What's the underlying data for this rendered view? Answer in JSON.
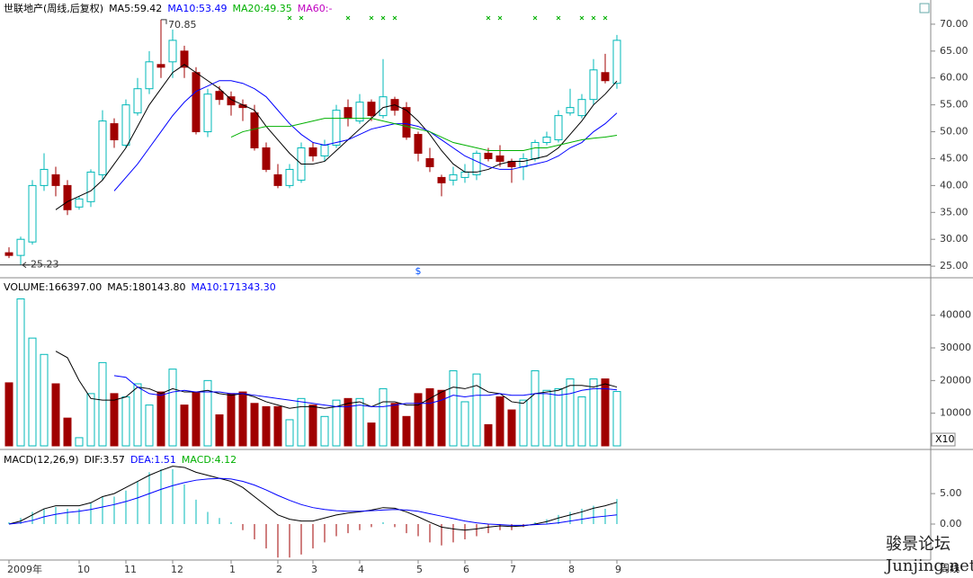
{
  "chart_data": [
    {
      "type": "candlestick",
      "title": "世联地产(周线,后复权)",
      "title_color": "#000000",
      "categories": [
        "2009年",
        null,
        null,
        null,
        null,
        null,
        "10",
        null,
        null,
        null,
        "11",
        null,
        null,
        null,
        "12",
        null,
        null,
        null,
        null,
        "1",
        null,
        null,
        null,
        "2",
        null,
        null,
        "3",
        null,
        null,
        null,
        "4",
        null,
        null,
        null,
        null,
        "5",
        null,
        null,
        null,
        "6",
        null,
        null,
        null,
        "7",
        null,
        null,
        null,
        null,
        "8",
        null,
        null,
        null,
        "9"
      ],
      "open": [
        27.5,
        27,
        29.5,
        40,
        42,
        40,
        36,
        37,
        42,
        51.5,
        47.5,
        53.5,
        58,
        62.5,
        63,
        65,
        61,
        50,
        57.5,
        56.5,
        55,
        53.5,
        47,
        42,
        40,
        41,
        47,
        45.5,
        47.5,
        54.5,
        52,
        55.5,
        53,
        56,
        54.5,
        49.5,
        45,
        41.5,
        41,
        41.5,
        42,
        46,
        45.5,
        44.5,
        43.5,
        45,
        48,
        48.5,
        53.5,
        53,
        56,
        61,
        59
      ],
      "high": [
        28.5,
        30.5,
        41,
        46,
        43.5,
        41,
        38,
        43,
        54,
        52.5,
        56,
        60,
        65,
        70.85,
        69,
        66,
        62,
        58,
        58.5,
        57.5,
        56,
        55,
        48,
        44,
        44,
        48,
        48,
        48.5,
        55,
        56,
        57,
        56,
        63.5,
        56.5,
        55.5,
        50,
        47,
        42,
        43.5,
        44,
        46.5,
        47,
        47.5,
        45,
        46,
        48.5,
        50,
        54,
        58,
        57,
        63.5,
        64.5,
        68
      ],
      "low": [
        26.5,
        25.23,
        29,
        39,
        38,
        34.5,
        35.5,
        36,
        41,
        47,
        47,
        53,
        57,
        60,
        60,
        60,
        49.5,
        49,
        55,
        53,
        52,
        46.5,
        42.5,
        39.5,
        39.5,
        40.5,
        44.5,
        44.5,
        47,
        51,
        51.5,
        52,
        52.5,
        53,
        48.5,
        44.5,
        42.5,
        38,
        40,
        40.5,
        41,
        44.5,
        43.5,
        40.5,
        41,
        44.5,
        47.5,
        48,
        53,
        52.5,
        55,
        59,
        58
      ],
      "close": [
        27,
        30,
        40,
        43,
        40,
        35.5,
        37.5,
        42.5,
        52,
        48.5,
        55,
        58,
        63,
        62,
        67,
        62,
        50,
        57,
        56,
        55,
        54.5,
        47,
        43,
        40,
        43,
        47,
        45.5,
        47.5,
        54,
        52.5,
        55.5,
        53,
        56.5,
        54,
        49,
        46,
        43.5,
        40.5,
        42,
        42.5,
        46,
        45,
        44.5,
        43.5,
        45,
        48,
        49,
        53,
        54.5,
        56,
        61.5,
        59.5,
        67
      ],
      "up_color": "#00b8b8",
      "down_color": "#a00000",
      "ylim": [
        24.35,
        74.5
      ],
      "yticks": [
        {
          "value": 25,
          "label": "25.00"
        },
        {
          "value": 30,
          "label": "30.00"
        },
        {
          "value": 35,
          "label": "35.00"
        },
        {
          "value": 40,
          "label": "40.00"
        },
        {
          "value": 45,
          "label": "45.00"
        },
        {
          "value": 50,
          "label": "50.00"
        },
        {
          "value": 55,
          "label": "55.00"
        },
        {
          "value": 60,
          "label": "60.00"
        },
        {
          "value": 65,
          "label": "65.00"
        },
        {
          "value": 70,
          "label": "70.00"
        }
      ],
      "lines": [
        {
          "name": "MA5:59.42",
          "color": "#000000",
          "values": [
            null,
            null,
            null,
            null,
            35.5,
            37,
            38,
            39,
            41,
            44,
            47,
            51,
            55,
            58,
            61,
            62.5,
            61,
            59.5,
            58,
            56,
            55,
            54,
            51,
            48.5,
            46,
            44,
            44,
            44.5,
            46.5,
            48.5,
            50.5,
            52.5,
            54.5,
            55,
            54,
            52,
            49.5,
            46.5,
            44,
            42.5,
            42.5,
            43,
            44,
            44.5,
            44.5,
            45,
            45.5,
            47,
            49.5,
            52,
            55,
            57,
            59.42
          ]
        },
        {
          "name": "MA10:53.49",
          "color": "#0000ff",
          "values": [
            null,
            null,
            null,
            null,
            null,
            null,
            null,
            null,
            null,
            39,
            41.5,
            44,
            47,
            50,
            53,
            55.5,
            57.5,
            58.5,
            59.5,
            59.5,
            59,
            58,
            56.5,
            54,
            51.5,
            49.5,
            48,
            47.5,
            48,
            48.5,
            49.5,
            50.5,
            51,
            51.5,
            51.5,
            51,
            50,
            48.5,
            47,
            45.5,
            44.5,
            43.5,
            43,
            43,
            43.5,
            44,
            44.5,
            45.5,
            47,
            48,
            50,
            51.5,
            53.49
          ]
        },
        {
          "name": "MA20:49.35",
          "color": "#00b000",
          "values": [
            null,
            null,
            null,
            null,
            null,
            null,
            null,
            null,
            null,
            null,
            null,
            null,
            null,
            null,
            null,
            null,
            null,
            null,
            null,
            49,
            50,
            50.5,
            51,
            51,
            51,
            51.5,
            52,
            52.5,
            52.5,
            52.5,
            52.5,
            52.5,
            52,
            51.5,
            51,
            50.5,
            50,
            49,
            48,
            47.5,
            47,
            46.5,
            46.5,
            46.5,
            46.5,
            47,
            47,
            47.5,
            48,
            48.5,
            48.8,
            49,
            49.35
          ]
        },
        {
          "name": "MA60:-",
          "color": "#c000c0"
        }
      ],
      "signals": [
        24,
        25,
        29,
        31,
        32,
        33,
        41,
        42,
        45,
        47,
        49,
        50,
        51
      ],
      "signal_color": "#00b000",
      "marker": {
        "label": "$",
        "index": 35,
        "color": "#0050ff"
      }
    },
    {
      "type": "volume",
      "title": "VOLUME:166397.00",
      "title_color": "#000000",
      "unit_label": "X10",
      "values": [
        19300,
        45000,
        33000,
        28000,
        19000,
        8500,
        2500,
        16000,
        25500,
        16000,
        15000,
        19000,
        12500,
        16500,
        23500,
        12500,
        16500,
        20000,
        9500,
        16000,
        16500,
        13000,
        12000,
        12000,
        8000,
        14500,
        12500,
        9000,
        14000,
        14500,
        14500,
        7000,
        17500,
        13000,
        9000,
        16000,
        17500,
        17000,
        23000,
        13500,
        22000,
        6500,
        15000,
        11000,
        14000,
        23000,
        17000,
        17500,
        20500,
        15000,
        20500,
        20500,
        16639.7
      ],
      "ylim": [
        0,
        51200
      ],
      "yticks": [
        10000,
        20000,
        30000,
        40000
      ],
      "lines": [
        {
          "name": "MA5:180143.80",
          "color": "#000000",
          "values": [
            null,
            null,
            null,
            null,
            29000,
            27000,
            20000,
            14500,
            14000,
            14000,
            15000,
            18000,
            17500,
            16000,
            17500,
            16500,
            16500,
            17000,
            16000,
            15500,
            16000,
            15000,
            13500,
            12500,
            11500,
            12000,
            12000,
            11500,
            12000,
            13000,
            13500,
            12000,
            13500,
            13500,
            12500,
            12500,
            14500,
            16500,
            18000,
            17500,
            18500,
            16500,
            16000,
            13500,
            13000,
            16000,
            16500,
            17000,
            18500,
            18500,
            18000,
            19000,
            18014.38
          ]
        },
        {
          "name": "MA10:171343.30",
          "color": "#0000ff",
          "values": [
            null,
            null,
            null,
            null,
            null,
            null,
            null,
            null,
            null,
            21500,
            21000,
            18000,
            16000,
            15500,
            16500,
            17000,
            16500,
            16500,
            16500,
            16000,
            16000,
            15500,
            15000,
            14500,
            14000,
            13500,
            13000,
            12500,
            12000,
            12000,
            12500,
            12000,
            12000,
            12500,
            13000,
            13000,
            13000,
            14000,
            15500,
            15000,
            15500,
            15500,
            16000,
            15500,
            15500,
            16000,
            16000,
            15500,
            16000,
            17000,
            17500,
            17500,
            17134.33
          ]
        }
      ]
    },
    {
      "type": "macd",
      "title": "MACD(12,26,9)",
      "title_color": "#000000",
      "values": [
        0.3,
        1,
        2,
        2.5,
        2.8,
        2.5,
        2.5,
        3.5,
        4.5,
        4.5,
        5.5,
        7,
        8.5,
        9,
        9,
        6.5,
        4,
        2,
        1,
        0.3,
        -1,
        -2.5,
        -4,
        -5.5,
        -5.5,
        -5,
        -4,
        -3,
        -2,
        -1.5,
        -1,
        -0.5,
        0.3,
        -0.5,
        -1.5,
        -2,
        -3,
        -3.5,
        -3,
        -2.5,
        -2,
        -1.5,
        -1,
        -1,
        -0.5,
        0.3,
        0.8,
        1.5,
        2,
        2.5,
        3,
        2.5,
        4.12
      ],
      "up_color": "#00b8b8",
      "down_color": "#a00000",
      "bar_label": "MACD:4.12",
      "bar_label_color": "#00b000",
      "ylim": [
        -5.9,
        11.8
      ],
      "yticks": [
        {
          "value": 0,
          "label": "0.00"
        },
        {
          "value": 5,
          "label": "5.00"
        }
      ],
      "lines": [
        {
          "name": "DIF:3.57",
          "color": "#000000",
          "values": [
            0,
            0.5,
            1.5,
            2.5,
            3,
            3,
            3,
            3.5,
            4.5,
            5,
            6,
            7,
            8,
            8.8,
            9.5,
            9.3,
            8.5,
            8,
            7.5,
            7,
            6,
            4.5,
            3,
            1.5,
            0.8,
            0.5,
            0.5,
            1,
            1.5,
            1.8,
            2,
            2.3,
            2.7,
            2.6,
            2,
            1.2,
            0.3,
            -0.5,
            -0.8,
            -1,
            -0.8,
            -0.5,
            -0.3,
            -0.4,
            -0.3,
            0,
            0.4,
            1,
            1.5,
            2,
            2.6,
            3,
            3.57
          ]
        },
        {
          "name": "DEA:1.51",
          "color": "#0000ff",
          "values": [
            0,
            0.2,
            0.6,
            1.2,
            1.6,
            1.9,
            2.1,
            2.4,
            2.8,
            3.2,
            3.7,
            4.3,
            5,
            5.7,
            6.3,
            6.8,
            7.2,
            7.4,
            7.5,
            7.4,
            7,
            6.4,
            5.6,
            4.7,
            3.9,
            3.2,
            2.7,
            2.4,
            2.2,
            2.1,
            2.1,
            2.2,
            2.3,
            2.4,
            2.3,
            2.1,
            1.7,
            1.3,
            0.9,
            0.5,
            0.2,
            0,
            -0.1,
            -0.2,
            -0.2,
            -0.1,
            0,
            0.2,
            0.5,
            0.8,
            1.1,
            1.3,
            1.51
          ]
        }
      ]
    }
  ],
  "period_label": "周线",
  "watermark": {
    "title": "骏景论坛",
    "url": "Junjing.net"
  }
}
